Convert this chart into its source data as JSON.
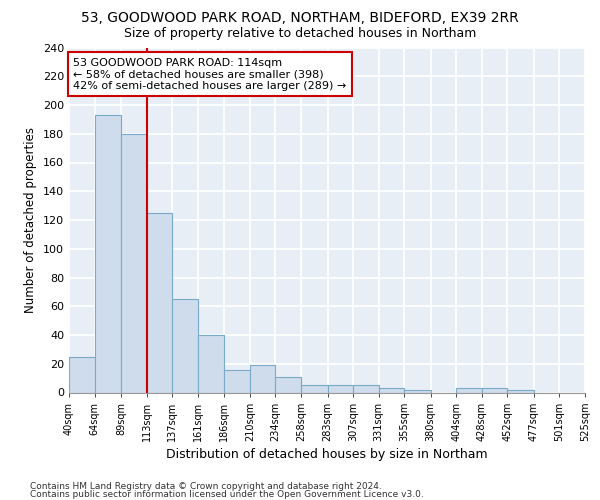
{
  "title1": "53, GOODWOOD PARK ROAD, NORTHAM, BIDEFORD, EX39 2RR",
  "title2": "Size of property relative to detached houses in Northam",
  "xlabel": "Distribution of detached houses by size in Northam",
  "ylabel": "Number of detached properties",
  "bar_color": "#cfdceb",
  "bar_edge_color": "#7aaaca",
  "bin_labels": [
    "40sqm",
    "64sqm",
    "89sqm",
    "113sqm",
    "137sqm",
    "161sqm",
    "186sqm",
    "210sqm",
    "234sqm",
    "258sqm",
    "283sqm",
    "307sqm",
    "331sqm",
    "355sqm",
    "380sqm",
    "404sqm",
    "428sqm",
    "452sqm",
    "477sqm",
    "501sqm",
    "525sqm"
  ],
  "bar_values": [
    25,
    193,
    180,
    125,
    65,
    40,
    16,
    19,
    11,
    5,
    5,
    5,
    3,
    2,
    0,
    3,
    3,
    2,
    0,
    0
  ],
  "bin_edges": [
    40,
    64,
    89,
    113,
    137,
    161,
    186,
    210,
    234,
    258,
    283,
    307,
    331,
    355,
    380,
    404,
    428,
    452,
    477,
    501,
    525
  ],
  "red_line_x": 113,
  "ylim": [
    0,
    240
  ],
  "yticks": [
    0,
    20,
    40,
    60,
    80,
    100,
    120,
    140,
    160,
    180,
    200,
    220,
    240
  ],
  "annotation_text": "53 GOODWOOD PARK ROAD: 114sqm\n← 58% of detached houses are smaller (398)\n42% of semi-detached houses are larger (289) →",
  "annotation_box_color": "#ffffff",
  "annotation_box_edge": "#cc0000",
  "footer1": "Contains HM Land Registry data © Crown copyright and database right 2024.",
  "footer2": "Contains public sector information licensed under the Open Government Licence v3.0.",
  "bg_color": "#e8eef5",
  "grid_color": "#ffffff",
  "title1_fontsize": 10,
  "title2_fontsize": 9,
  "xlabel_fontsize": 9,
  "ylabel_fontsize": 8.5
}
